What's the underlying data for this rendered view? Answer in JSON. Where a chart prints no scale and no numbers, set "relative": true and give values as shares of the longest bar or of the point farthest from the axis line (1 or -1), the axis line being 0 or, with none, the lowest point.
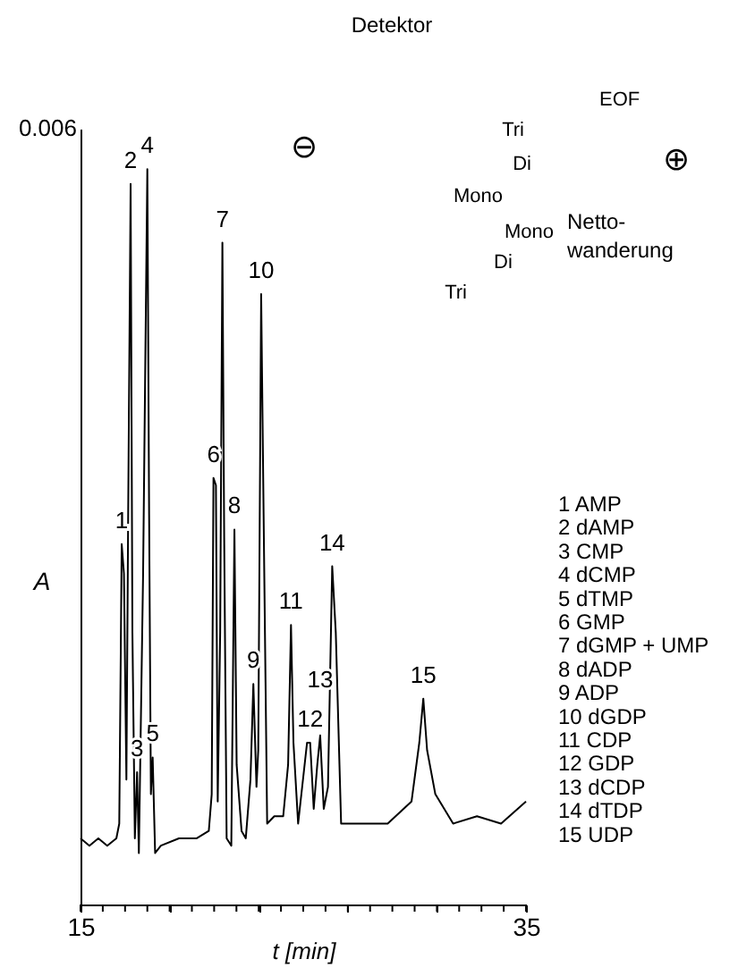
{
  "chart_data": {
    "type": "line",
    "relative": true,
    "xlabel": "t [min]",
    "ylabel": "A",
    "xlim": [
      15,
      35
    ],
    "xticks": [
      15,
      {
        "value": 16,
        "label": null
      },
      {
        "value": 17,
        "label": null
      },
      {
        "value": 18,
        "label": null
      },
      {
        "value": 19,
        "label": null
      },
      {
        "value": 20,
        "label": null
      },
      {
        "value": 21,
        "label": null
      },
      {
        "value": 22,
        "label": null
      },
      {
        "value": 23,
        "label": null
      },
      {
        "value": 24,
        "label": null
      },
      {
        "value": 25,
        "label": null
      },
      {
        "value": 26,
        "label": null
      },
      {
        "value": 27,
        "label": null
      },
      {
        "value": 28,
        "label": null
      },
      {
        "value": 29,
        "label": null
      },
      {
        "value": 30,
        "label": null
      },
      {
        "value": 31,
        "label": null
      },
      {
        "value": 32,
        "label": null
      },
      {
        "value": 33,
        "label": null
      },
      {
        "value": 34,
        "label": null
      },
      35
    ],
    "grid": false,
    "legend": false,
    "marker": "none",
    "line_style": "solid",
    "series": [
      {
        "color": "#000000",
        "x": [
          15.0,
          15.4,
          15.8,
          16.2,
          16.61,
          16.74,
          16.85,
          16.95,
          17.06,
          17.14,
          17.25,
          17.33,
          17.44,
          17.54,
          17.62,
          17.81,
          18.0,
          18.08,
          18.16,
          18.24,
          18.35,
          18.61,
          19.42,
          20.22,
          20.76,
          20.89,
          20.97,
          21.08,
          21.16,
          21.27,
          21.37,
          21.45,
          21.56,
          21.77,
          21.91,
          22.01,
          22.23,
          22.42,
          22.63,
          22.76,
          22.9,
          22.98,
          23.11,
          23.22,
          23.38,
          23.7,
          24.1,
          24.32,
          24.45,
          24.56,
          24.77,
          25.17,
          25.31,
          25.47,
          25.63,
          25.76,
          25.92,
          26.11,
          26.3,
          26.46,
          26.7,
          27.45,
          28.79,
          29.86,
          30.21,
          30.39,
          30.56,
          30.93,
          31.73,
          32.8,
          33.88,
          35.0
        ],
        "values": [
          0.09,
          0.08,
          0.09,
          0.08,
          0.09,
          0.11,
          0.49,
          0.45,
          0.17,
          0.53,
          0.98,
          0.37,
          0.09,
          0.18,
          0.07,
          0.45,
          1.0,
          0.53,
          0.15,
          0.2,
          0.07,
          0.08,
          0.09,
          0.09,
          0.1,
          0.15,
          0.58,
          0.57,
          0.14,
          0.37,
          0.9,
          0.5,
          0.09,
          0.08,
          0.51,
          0.19,
          0.1,
          0.09,
          0.17,
          0.3,
          0.16,
          0.21,
          0.83,
          0.53,
          0.11,
          0.12,
          0.12,
          0.19,
          0.38,
          0.22,
          0.11,
          0.22,
          0.22,
          0.13,
          0.19,
          0.23,
          0.13,
          0.16,
          0.46,
          0.37,
          0.11,
          0.11,
          0.11,
          0.14,
          0.22,
          0.28,
          0.21,
          0.15,
          0.11,
          0.12,
          0.11,
          0.14
        ]
      }
    ],
    "annotations": [
      {
        "text": "1",
        "x": 16.85,
        "y": 0.49
      },
      {
        "text": "2",
        "x": 17.25,
        "y": 0.98
      },
      {
        "text": "3",
        "x": 17.54,
        "y": 0.18
      },
      {
        "text": "4",
        "x": 18.0,
        "y": 1.0
      },
      {
        "text": "5",
        "x": 18.24,
        "y": 0.2
      },
      {
        "text": "6",
        "x": 20.97,
        "y": 0.58
      },
      {
        "text": "7",
        "x": 21.37,
        "y": 0.9
      },
      {
        "text": "8",
        "x": 21.91,
        "y": 0.51
      },
      {
        "text": "9",
        "x": 22.76,
        "y": 0.3
      },
      {
        "text": "10",
        "x": 23.11,
        "y": 0.83
      },
      {
        "text": "11",
        "x": 24.45,
        "y": 0.38
      },
      {
        "text": "12",
        "x": 25.31,
        "y": 0.22
      },
      {
        "text": "13",
        "x": 25.76,
        "y": 0.23
      },
      {
        "text": "14",
        "x": 26.3,
        "y": 0.46
      },
      {
        "text": "15",
        "x": 30.39,
        "y": 0.28
      },
      "0.006",
      "1 AMP",
      "2 dAMP",
      "3 CMP",
      "4 dCMP",
      "5 dTMP",
      "6 GMP",
      "7 dGMP + UMP",
      "8 dADP",
      "9 ADP",
      "10 dGDP",
      "11 CDP",
      "12 GDP",
      "13 dCDP",
      "14 dTDP",
      "15 UDP",
      "Detektor",
      "EOF",
      "Tri",
      "Di",
      "Mono",
      "Mono",
      "Di",
      "Tri",
      "Netto-\nwanderung",
      "⊖",
      "⊕"
    ]
  }
}
